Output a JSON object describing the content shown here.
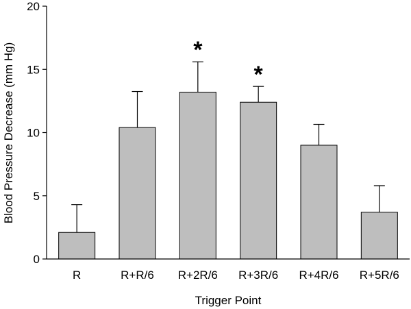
{
  "chart_data": {
    "type": "bar",
    "categories": [
      "R",
      "R+R/6",
      "R+2R/6",
      "R+3R/6",
      "R+4R/6",
      "R+5R/6"
    ],
    "values": [
      2.1,
      10.4,
      13.2,
      12.4,
      9.0,
      3.7
    ],
    "error_upper": [
      4.3,
      13.25,
      15.6,
      13.65,
      10.65,
      5.8
    ],
    "significance": [
      "",
      "",
      "*",
      "*",
      "",
      ""
    ],
    "xlabel": "Trigger Point",
    "ylabel": "Blood Pressure Decrease (mm Hg)",
    "ylim": [
      0,
      20
    ],
    "yticks": [
      0,
      5,
      10,
      15,
      20
    ],
    "grid": false,
    "bar_color": "#bebebe",
    "bar_edge_color": "#000000"
  }
}
